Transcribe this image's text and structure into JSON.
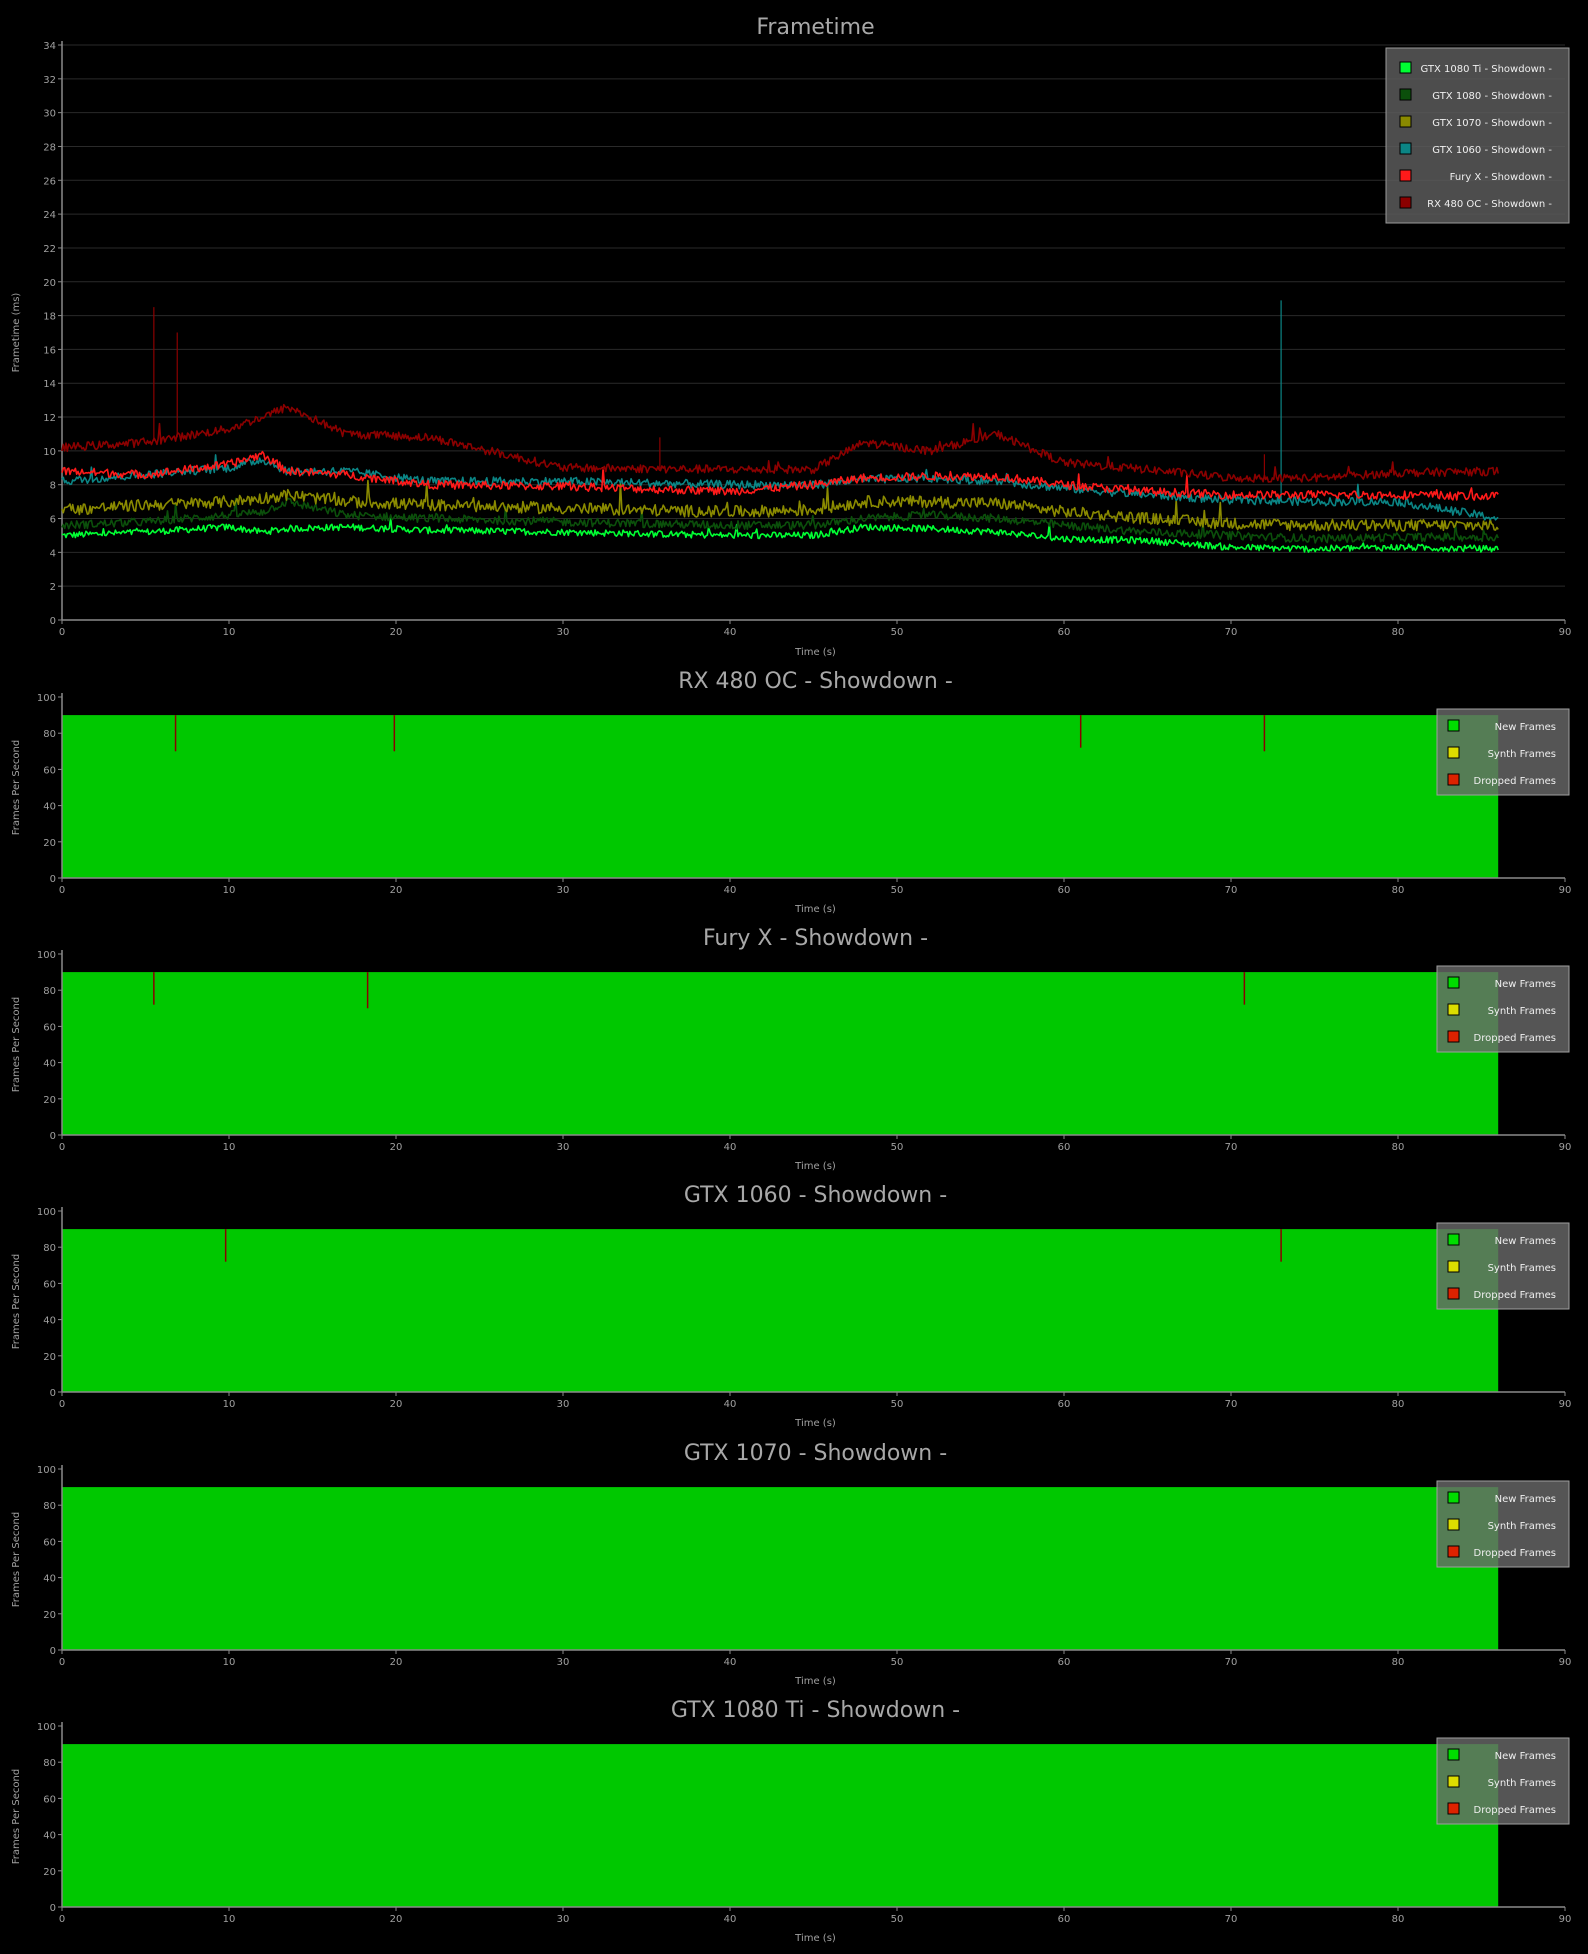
{
  "colors": {
    "background": "#000000",
    "grid": "#2a2a2a",
    "axis": "#8a8a8a",
    "tick_text": "#a0a0a0",
    "title_text": "#a8a8a8",
    "fps_fill": "#00c800",
    "dropped": "#8b0000"
  },
  "frametime_chart": {
    "title": "Frametime",
    "xlabel": "Time (s)",
    "ylabel": "Frametime (ms)"
  },
  "fps_common": {
    "xlabel": "Time (s)",
    "ylabel": "Frames Per Second",
    "legend": [
      {
        "label": "New Frames",
        "color": "#00dd00"
      },
      {
        "label": "Synth Frames",
        "color": "#dddd00"
      },
      {
        "label": "Dropped Frames",
        "color": "#dd2200"
      }
    ]
  },
  "chart_data": [
    {
      "type": "line",
      "title": "Frametime",
      "xlabel": "Time (s)",
      "ylabel": "Frametime (ms)",
      "xlim": [
        0,
        90
      ],
      "ylim": [
        0,
        34
      ],
      "xticks": [
        0,
        10,
        20,
        30,
        40,
        50,
        60,
        70,
        80,
        90
      ],
      "yticks": [
        0,
        2,
        4,
        6,
        8,
        10,
        12,
        14,
        16,
        18,
        20,
        22,
        24,
        26,
        28,
        30,
        32,
        34
      ],
      "grid": true,
      "legend_position": "top-right",
      "x": [
        0,
        5,
        10,
        12,
        13.5,
        17,
        22,
        30,
        40,
        45,
        48,
        52,
        56,
        60,
        65,
        70,
        75,
        80,
        86
      ],
      "series": [
        {
          "name": "GTX 1080 Ti - Showdown -",
          "color": "#00ff33",
          "noise": 0.2,
          "values": [
            5.0,
            5.2,
            5.5,
            5.2,
            5.4,
            5.5,
            5.3,
            5.2,
            5.0,
            5.0,
            5.5,
            5.4,
            5.2,
            4.8,
            4.7,
            4.3,
            4.2,
            4.3,
            4.2
          ],
          "spikes": []
        },
        {
          "name": "GTX 1080 - Showdown -",
          "color": "#0b4f0b",
          "noise": 0.25,
          "values": [
            5.6,
            5.8,
            6.2,
            6.4,
            7.0,
            6.2,
            6.0,
            5.8,
            5.6,
            5.6,
            6.0,
            6.2,
            6.0,
            5.6,
            5.2,
            5.0,
            4.8,
            4.9,
            4.9
          ],
          "spikes": []
        },
        {
          "name": "GTX 1070 - Showdown -",
          "color": "#8a8a00",
          "noise": 0.35,
          "values": [
            6.5,
            6.8,
            7.0,
            7.2,
            7.4,
            7.0,
            6.8,
            6.6,
            6.4,
            6.5,
            7.0,
            7.0,
            6.9,
            6.4,
            6.0,
            5.7,
            5.6,
            5.6,
            5.6
          ],
          "spikes": []
        },
        {
          "name": "GTX 1060 - Showdown -",
          "color": "#0b8585",
          "noise": 0.25,
          "values": [
            8.2,
            8.6,
            9.0,
            9.5,
            8.8,
            8.8,
            8.2,
            8.2,
            8.0,
            8.0,
            8.3,
            8.4,
            8.2,
            7.8,
            7.4,
            7.1,
            7.0,
            7.0,
            6.0
          ],
          "spikes": [
            [
              73,
              18.9
            ]
          ]
        },
        {
          "name": "Fury X - Showdown -",
          "color": "#ff1a1a",
          "noise": 0.25,
          "values": [
            8.8,
            8.6,
            9.2,
            9.8,
            8.8,
            8.6,
            8.0,
            7.9,
            7.6,
            8.0,
            8.4,
            8.5,
            8.5,
            8.0,
            7.6,
            7.4,
            7.4,
            7.4,
            7.3
          ],
          "spikes": []
        },
        {
          "name": "RX 480 OC - Showdown -",
          "color": "#8b0000",
          "noise": 0.25,
          "values": [
            10.2,
            10.5,
            11.3,
            12.0,
            12.6,
            11.0,
            10.8,
            9.0,
            8.9,
            8.9,
            10.5,
            10.0,
            11.0,
            9.3,
            8.9,
            8.4,
            8.4,
            8.7,
            8.8
          ],
          "spikes": [
            [
              5.5,
              18.5
            ],
            [
              6.9,
              17.0
            ],
            [
              35.8,
              10.8
            ],
            [
              72.0,
              9.8
            ]
          ]
        }
      ]
    },
    {
      "type": "area",
      "title": "RX 480 OC - Showdown -",
      "xlabel": "Time (s)",
      "ylabel": "Frames Per Second",
      "xlim": [
        0,
        90
      ],
      "ylim": [
        0,
        100
      ],
      "xticks": [
        0,
        10,
        20,
        30,
        40,
        50,
        60,
        70,
        80,
        90
      ],
      "yticks": [
        0,
        20,
        40,
        60,
        80,
        100
      ],
      "legend_position": "top-right",
      "series": [
        {
          "name": "New Frames",
          "value": 90,
          "x_end": 86
        }
      ],
      "dips": [
        [
          6.8,
          70
        ],
        [
          19.9,
          70
        ],
        [
          61.0,
          72
        ],
        [
          72.0,
          70
        ]
      ]
    },
    {
      "type": "area",
      "title": "Fury X - Showdown -",
      "xlabel": "Time (s)",
      "ylabel": "Frames Per Second",
      "xlim": [
        0,
        90
      ],
      "ylim": [
        0,
        100
      ],
      "xticks": [
        0,
        10,
        20,
        30,
        40,
        50,
        60,
        70,
        80,
        90
      ],
      "yticks": [
        0,
        20,
        40,
        60,
        80,
        100
      ],
      "legend_position": "top-right",
      "series": [
        {
          "name": "New Frames",
          "value": 90,
          "x_end": 86
        }
      ],
      "dips": [
        [
          5.5,
          72
        ],
        [
          18.3,
          70
        ],
        [
          70.8,
          72
        ]
      ]
    },
    {
      "type": "area",
      "title": "GTX 1060 - Showdown -",
      "xlabel": "Time (s)",
      "ylabel": "Frames Per Second",
      "xlim": [
        0,
        90
      ],
      "ylim": [
        0,
        100
      ],
      "xticks": [
        0,
        10,
        20,
        30,
        40,
        50,
        60,
        70,
        80,
        90
      ],
      "yticks": [
        0,
        20,
        40,
        60,
        80,
        100
      ],
      "legend_position": "top-right",
      "series": [
        {
          "name": "New Frames",
          "value": 90,
          "x_end": 86
        }
      ],
      "dips": [
        [
          9.8,
          72
        ],
        [
          73.0,
          72
        ]
      ]
    },
    {
      "type": "area",
      "title": "GTX 1070 - Showdown -",
      "xlabel": "Time (s)",
      "ylabel": "Frames Per Second",
      "xlim": [
        0,
        90
      ],
      "ylim": [
        0,
        100
      ],
      "xticks": [
        0,
        10,
        20,
        30,
        40,
        50,
        60,
        70,
        80,
        90
      ],
      "yticks": [
        0,
        20,
        40,
        60,
        80,
        100
      ],
      "legend_position": "top-right",
      "series": [
        {
          "name": "New Frames",
          "value": 90,
          "x_end": 86
        }
      ],
      "dips": []
    },
    {
      "type": "area",
      "title": "GTX 1080 Ti - Showdown -",
      "xlabel": "Time (s)",
      "ylabel": "Frames Per Second",
      "xlim": [
        0,
        90
      ],
      "ylim": [
        0,
        100
      ],
      "xticks": [
        0,
        10,
        20,
        30,
        40,
        50,
        60,
        70,
        80,
        90
      ],
      "yticks": [
        0,
        20,
        40,
        60,
        80,
        100
      ],
      "legend_position": "top-right",
      "series": [
        {
          "name": "New Frames",
          "value": 90,
          "x_end": 86
        }
      ],
      "dips": []
    }
  ]
}
